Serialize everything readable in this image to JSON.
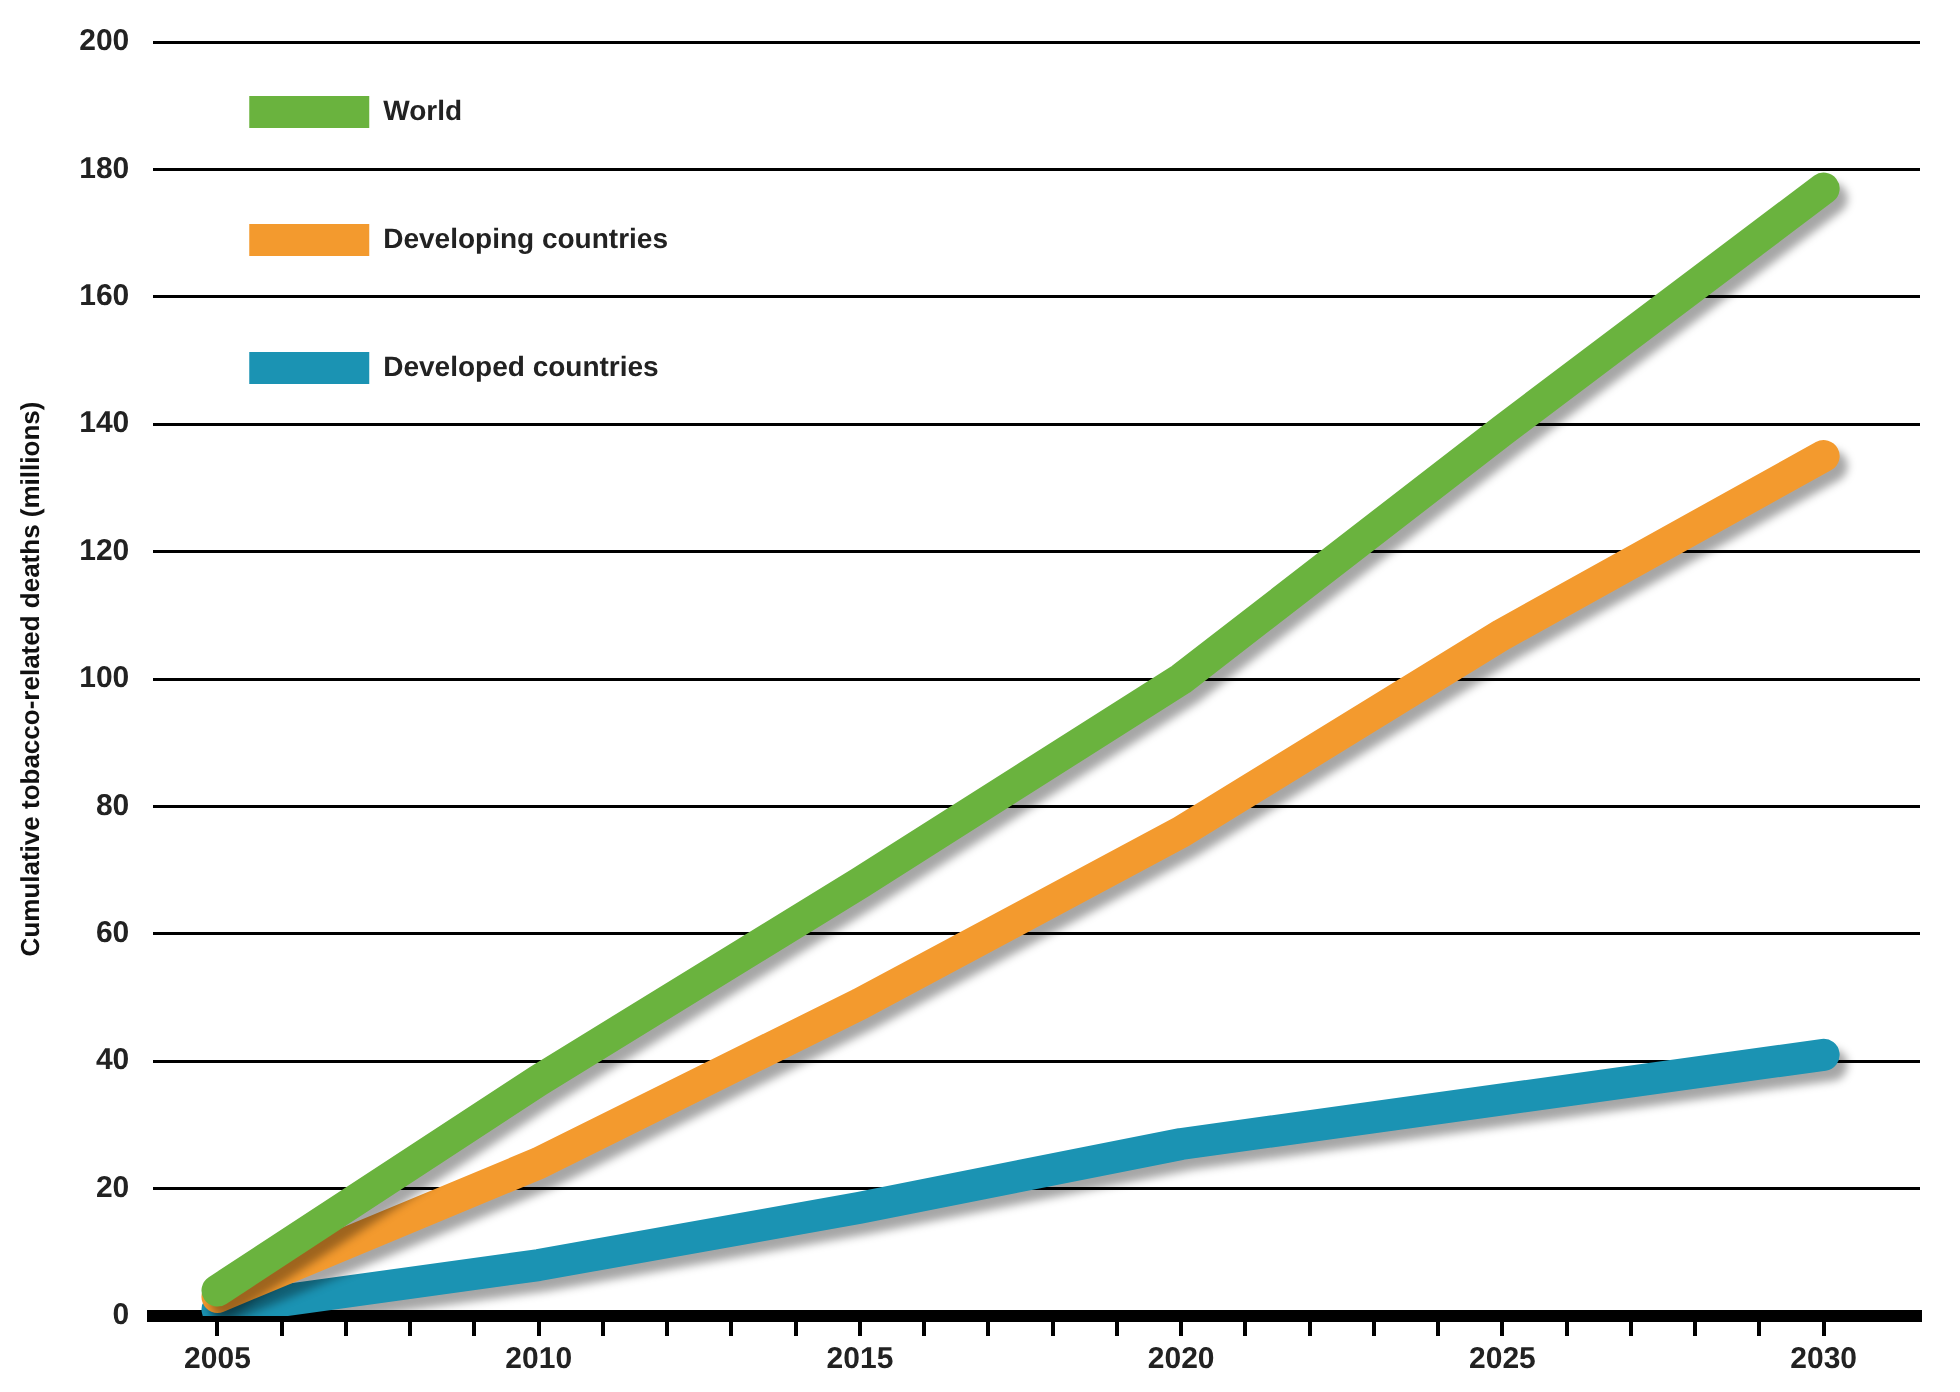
{
  "chart_data": {
    "type": "line",
    "ylabel": "Cumulative tobacco-related deaths (millions)",
    "x": [
      2005,
      2010,
      2015,
      2020,
      2025,
      2030
    ],
    "xlim": [
      2004,
      2031.5
    ],
    "xticks": [
      2005,
      {
        "value": 2006,
        "label": null
      },
      {
        "value": 2007,
        "label": null
      },
      {
        "value": 2008,
        "label": null
      },
      {
        "value": 2009,
        "label": null
      },
      2010,
      {
        "value": 2011,
        "label": null
      },
      {
        "value": 2012,
        "label": null
      },
      {
        "value": 2013,
        "label": null
      },
      {
        "value": 2014,
        "label": null
      },
      2015,
      {
        "value": 2016,
        "label": null
      },
      {
        "value": 2017,
        "label": null
      },
      {
        "value": 2018,
        "label": null
      },
      {
        "value": 2019,
        "label": null
      },
      2020,
      {
        "value": 2021,
        "label": null
      },
      {
        "value": 2022,
        "label": null
      },
      {
        "value": 2023,
        "label": null
      },
      {
        "value": 2024,
        "label": null
      },
      2025,
      {
        "value": 2026,
        "label": null
      },
      {
        "value": 2027,
        "label": null
      },
      {
        "value": 2028,
        "label": null
      },
      {
        "value": 2029,
        "label": null
      },
      2030
    ],
    "ylim": [
      0,
      200
    ],
    "yticks": [
      0,
      20,
      40,
      60,
      80,
      100,
      120,
      140,
      160,
      180,
      200
    ],
    "grid": "y",
    "legend": "top left",
    "marker": "none",
    "line_style": "solid",
    "series": [
      {
        "name": "World",
        "color": "#6ab33e",
        "values": [
          4,
          37,
          68,
          100,
          139,
          177
        ]
      },
      {
        "name": "Developing countries",
        "color": "#f39a2e",
        "values": [
          3,
          24,
          49,
          76,
          107,
          135
        ]
      },
      {
        "name": "Developed countries",
        "color": "#1b93b3",
        "values": [
          1,
          8,
          17,
          27,
          34,
          41
        ]
      }
    ]
  }
}
